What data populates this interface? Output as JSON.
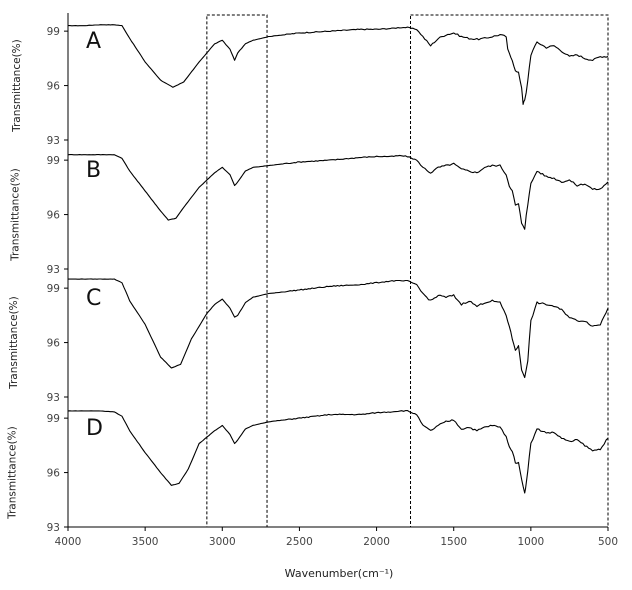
{
  "chart_data": {
    "type": "line",
    "title": "",
    "xlabel": "Wavenumber(cm⁻¹)",
    "ylabel": "Transmittance(%)",
    "xlim": [
      4000,
      500
    ],
    "x_ticks": [
      "4000",
      "3500",
      "3000",
      "2500",
      "2000",
      "1500",
      "1000",
      "500"
    ],
    "y_ticks": [
      "99",
      "96",
      "93"
    ],
    "highlight_regions": [
      {
        "x_from": 3100,
        "x_to": 2710
      },
      {
        "x_from": 1780,
        "x_to": 500
      }
    ],
    "panels": [
      {
        "label": "A",
        "ylim": [
          93,
          100
        ],
        "ylabel": "Transmittance(%)",
        "y_ticks": [
          "99",
          "96",
          "93"
        ],
        "x": [
          4000,
          3900,
          3800,
          3700,
          3650,
          3600,
          3500,
          3400,
          3320,
          3250,
          3150,
          3050,
          3000,
          2950,
          2920,
          2900,
          2850,
          2800,
          2700,
          2500,
          2300,
          2100,
          2000,
          1900,
          1850,
          1800,
          1740,
          1700,
          1650,
          1600,
          1550,
          1500,
          1450,
          1400,
          1350,
          1300,
          1250,
          1200,
          1160,
          1150,
          1120,
          1100,
          1080,
          1060,
          1050,
          1040,
          1030,
          1000,
          960,
          900,
          850,
          800,
          750,
          700,
          650,
          600,
          550,
          500
        ],
        "y": [
          99.3,
          99.3,
          99.35,
          99.35,
          99.3,
          98.6,
          97.3,
          96.3,
          95.9,
          96.2,
          97.3,
          98.3,
          98.5,
          98.0,
          97.4,
          97.8,
          98.3,
          98.5,
          98.7,
          98.9,
          99.0,
          99.1,
          99.1,
          99.15,
          99.2,
          99.2,
          99.1,
          98.7,
          98.2,
          98.6,
          98.8,
          98.9,
          98.7,
          98.6,
          98.55,
          98.6,
          98.7,
          98.8,
          98.7,
          98.0,
          97.4,
          96.8,
          96.7,
          95.9,
          95.0,
          95.2,
          95.6,
          97.7,
          98.4,
          98.1,
          98.2,
          97.9,
          97.6,
          97.7,
          97.5,
          97.4,
          97.6,
          97.6
        ]
      },
      {
        "label": "B",
        "ylim": [
          93,
          100
        ],
        "ylabel": "Transmittance(%)",
        "y_ticks": [
          "99",
          "96",
          "93"
        ],
        "x": [
          4000,
          3900,
          3800,
          3700,
          3650,
          3600,
          3500,
          3400,
          3350,
          3300,
          3250,
          3150,
          3050,
          3000,
          2950,
          2920,
          2900,
          2850,
          2800,
          2700,
          2500,
          2300,
          2100,
          2000,
          1900,
          1850,
          1800,
          1740,
          1700,
          1650,
          1600,
          1550,
          1500,
          1450,
          1400,
          1350,
          1300,
          1250,
          1200,
          1160,
          1140,
          1120,
          1100,
          1080,
          1060,
          1040,
          1030,
          1000,
          960,
          900,
          850,
          800,
          750,
          700,
          650,
          600,
          550,
          500
        ],
        "y": [
          99.3,
          99.3,
          99.3,
          99.3,
          99.1,
          98.4,
          97.3,
          96.2,
          95.7,
          95.8,
          96.4,
          97.5,
          98.3,
          98.6,
          98.2,
          97.6,
          97.8,
          98.4,
          98.6,
          98.7,
          98.9,
          99.0,
          99.15,
          99.2,
          99.2,
          99.25,
          99.2,
          99.0,
          98.6,
          98.3,
          98.6,
          98.7,
          98.8,
          98.5,
          98.4,
          98.3,
          98.6,
          98.7,
          98.7,
          98.2,
          97.6,
          97.3,
          96.5,
          96.6,
          95.5,
          95.2,
          96.0,
          97.7,
          98.4,
          98.1,
          98.0,
          97.8,
          97.9,
          97.6,
          97.7,
          97.4,
          97.4,
          97.8
        ]
      },
      {
        "label": "C",
        "ylim": [
          93,
          100
        ],
        "ylabel": "Transmittance(%)",
        "y_ticks": [
          "99",
          "96",
          "93"
        ],
        "x": [
          4000,
          3900,
          3800,
          3700,
          3650,
          3600,
          3500,
          3400,
          3330,
          3270,
          3200,
          3100,
          3050,
          3000,
          2950,
          2920,
          2900,
          2850,
          2800,
          2700,
          2500,
          2300,
          2100,
          2000,
          1900,
          1850,
          1800,
          1740,
          1700,
          1650,
          1600,
          1550,
          1500,
          1450,
          1400,
          1350,
          1300,
          1250,
          1200,
          1160,
          1140,
          1120,
          1100,
          1080,
          1060,
          1040,
          1020,
          1000,
          960,
          900,
          850,
          800,
          750,
          700,
          650,
          600,
          550,
          500
        ],
        "y": [
          99.5,
          99.5,
          99.5,
          99.5,
          99.3,
          98.3,
          97.0,
          95.2,
          94.6,
          94.8,
          96.2,
          97.6,
          98.1,
          98.4,
          97.9,
          97.4,
          97.5,
          98.2,
          98.5,
          98.7,
          98.9,
          99.1,
          99.2,
          99.3,
          99.4,
          99.4,
          99.4,
          99.2,
          98.7,
          98.3,
          98.6,
          98.5,
          98.6,
          98.1,
          98.3,
          98.0,
          98.2,
          98.3,
          98.2,
          97.5,
          96.9,
          96.2,
          95.6,
          95.8,
          94.5,
          94.1,
          95.0,
          97.2,
          98.2,
          98.1,
          98.0,
          97.8,
          97.4,
          97.2,
          97.2,
          96.9,
          97.0,
          97.9
        ]
      },
      {
        "label": "D",
        "ylim": [
          93,
          100
        ],
        "ylabel": "Transmittance(%)",
        "y_ticks": [
          "99",
          "96",
          "93"
        ],
        "x": [
          4000,
          3900,
          3800,
          3700,
          3650,
          3600,
          3500,
          3400,
          3330,
          3280,
          3220,
          3150,
          3050,
          3000,
          2950,
          2920,
          2900,
          2850,
          2800,
          2700,
          2500,
          2300,
          2100,
          2000,
          1900,
          1850,
          1800,
          1740,
          1700,
          1650,
          1600,
          1550,
          1500,
          1450,
          1400,
          1350,
          1300,
          1250,
          1200,
          1160,
          1140,
          1120,
          1100,
          1080,
          1060,
          1040,
          1030,
          1000,
          960,
          900,
          850,
          800,
          750,
          700,
          650,
          600,
          550,
          500
        ],
        "y": [
          99.4,
          99.4,
          99.4,
          99.35,
          99.1,
          98.3,
          97.1,
          96.0,
          95.3,
          95.4,
          96.2,
          97.6,
          98.3,
          98.6,
          98.1,
          97.6,
          97.8,
          98.4,
          98.6,
          98.8,
          99.0,
          99.2,
          99.2,
          99.3,
          99.35,
          99.4,
          99.4,
          99.2,
          98.6,
          98.3,
          98.6,
          98.8,
          98.9,
          98.4,
          98.5,
          98.3,
          98.5,
          98.6,
          98.5,
          98.0,
          97.4,
          97.2,
          96.5,
          96.6,
          95.6,
          94.9,
          95.4,
          97.6,
          98.4,
          98.2,
          98.2,
          97.9,
          97.7,
          97.8,
          97.5,
          97.2,
          97.3,
          97.9
        ]
      }
    ]
  }
}
